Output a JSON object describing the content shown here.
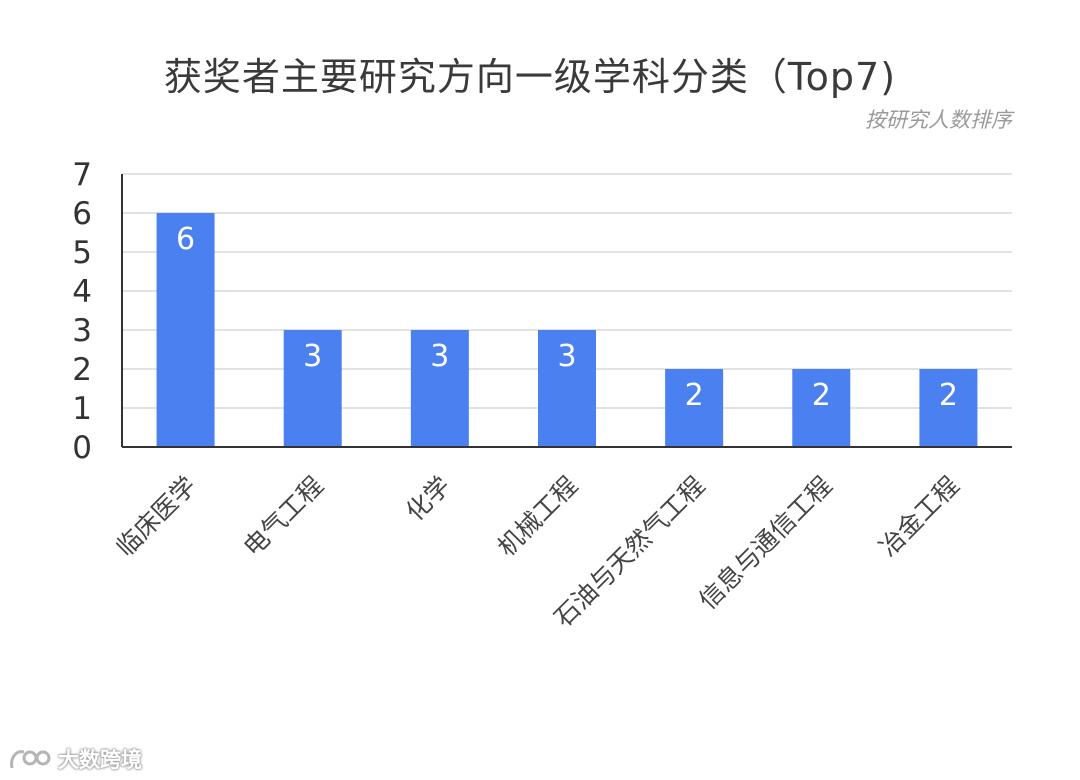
{
  "chart_data": {
    "type": "bar",
    "title": "获奖者主要研究方向一级学科分类（Top7)",
    "subtitle": "按研究人数排序",
    "xlabel": "",
    "ylabel": "",
    "categories": [
      "临床医学",
      "电气工程",
      "化学",
      "机械工程",
      "石油与天然气工程",
      "信息与通信工程",
      "冶金工程"
    ],
    "values": [
      6,
      3,
      3,
      3,
      2,
      2,
      2
    ],
    "ylim": [
      0,
      7
    ],
    "yticks": [
      0,
      1,
      2,
      3,
      4,
      5,
      6,
      7
    ],
    "grid": true,
    "legend": "none",
    "bar_color": "#4a80f0",
    "data_label_color": "#ffffff"
  },
  "watermark": {
    "text": "大数跨境"
  }
}
